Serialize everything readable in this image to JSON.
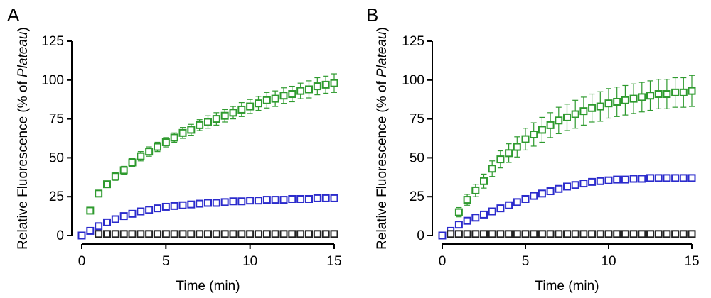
{
  "chart_data": [
    {
      "type": "scatter",
      "panel_label": "A",
      "xlabel": "Time (min)",
      "ylabel": {
        "pre": "Relative Fluorescence (% of ",
        "italic": "Plateau",
        "post": ")"
      },
      "xlim": [
        0,
        15
      ],
      "ylim": [
        0,
        125
      ],
      "xticks": [
        "0",
        "5",
        "10",
        "15"
      ],
      "yticks": [
        "0",
        "25",
        "50",
        "75",
        "100",
        "125"
      ],
      "grid": false,
      "series": [
        {
          "color": "#2e9a2e",
          "x": [
            0.5,
            1,
            1.5,
            2,
            2.5,
            3,
            3.5,
            4,
            4.5,
            5,
            5.5,
            6,
            6.5,
            7,
            7.5,
            8,
            8.5,
            9,
            9.5,
            10,
            10.5,
            11,
            11.5,
            12,
            12.5,
            13,
            13.5,
            14,
            14.5,
            15
          ],
          "y": [
            16,
            27,
            33,
            38,
            42,
            47,
            51,
            54,
            57,
            60,
            63,
            66,
            68,
            71,
            73,
            75,
            77,
            79,
            81,
            83,
            85,
            87,
            88,
            90,
            91,
            93,
            94,
            96,
            97,
            98
          ],
          "err": [
            1,
            2,
            2,
            2.5,
            2.5,
            2.5,
            3,
            3,
            3,
            3,
            3,
            3.5,
            3.5,
            3.5,
            4,
            4,
            4,
            4,
            4.5,
            4.5,
            4.5,
            5,
            5,
            5,
            5,
            5,
            5.5,
            5.5,
            5.5,
            6
          ]
        },
        {
          "color": "#2b2bcc",
          "x": [
            0,
            0.5,
            1,
            1.5,
            2,
            2.5,
            3,
            3.5,
            4,
            4.5,
            5,
            5.5,
            6,
            6.5,
            7,
            7.5,
            8,
            8.5,
            9,
            9.5,
            10,
            10.5,
            11,
            11.5,
            12,
            12.5,
            13,
            13.5,
            14,
            14.5,
            15
          ],
          "y": [
            0,
            3,
            6,
            8.5,
            10.5,
            12.5,
            14,
            15.5,
            16.5,
            17.5,
            18.5,
            19,
            19.5,
            20,
            20.5,
            21,
            21,
            21.5,
            22,
            22,
            22.5,
            22.5,
            23,
            23,
            23,
            23.5,
            23.5,
            23.5,
            24,
            24,
            24
          ],
          "err": [
            0,
            0.5,
            0.5,
            0.5,
            0.5,
            0.5,
            0.5,
            0.5,
            0.5,
            0.5,
            0.5,
            0.5,
            0.5,
            0.5,
            0.5,
            0.5,
            0.5,
            0.5,
            0.5,
            0.5,
            0.5,
            0.5,
            1,
            1,
            1,
            1,
            1,
            1,
            1,
            1,
            1
          ]
        },
        {
          "color": "#222222",
          "x": [
            1,
            1.5,
            2,
            2.5,
            3,
            3.5,
            4,
            4.5,
            5,
            5.5,
            6,
            6.5,
            7,
            7.5,
            8,
            8.5,
            9,
            9.5,
            10,
            10.5,
            11,
            11.5,
            12,
            12.5,
            13,
            13.5,
            14,
            14.5,
            15
          ],
          "y": [
            1,
            1,
            1,
            1,
            1,
            1,
            1,
            1,
            1,
            1,
            1,
            1,
            1,
            1,
            1,
            1,
            1,
            1,
            1,
            1,
            1,
            1,
            1,
            1,
            1,
            1,
            1,
            1,
            1
          ],
          "err": [
            0,
            0,
            0,
            0,
            0,
            0,
            0,
            0,
            0,
            0,
            0,
            0,
            0,
            0,
            0,
            0,
            0,
            0,
            0,
            0,
            0,
            0,
            0,
            0,
            0,
            0,
            0,
            0,
            0
          ]
        }
      ]
    },
    {
      "type": "scatter",
      "panel_label": "B",
      "xlabel": "Time (min)",
      "ylabel": {
        "pre": "Relative Fluorescence (% of ",
        "italic": "Plateau",
        "post": ")"
      },
      "xlim": [
        0,
        15
      ],
      "ylim": [
        0,
        125
      ],
      "xticks": [
        "0",
        "5",
        "10",
        "15"
      ],
      "yticks": [
        "0",
        "25",
        "50",
        "75",
        "100",
        "125"
      ],
      "grid": false,
      "series": [
        {
          "color": "#2e9a2e",
          "x": [
            1,
            1.5,
            2,
            2.5,
            3,
            3.5,
            4,
            4.5,
            5,
            5.5,
            6,
            6.5,
            7,
            7.5,
            8,
            8.5,
            9,
            9.5,
            10,
            10.5,
            11,
            11.5,
            12,
            12.5,
            13,
            13.5,
            14,
            14.5,
            15
          ],
          "y": [
            15,
            23,
            29,
            35,
            43,
            49,
            53,
            57,
            62,
            65,
            68,
            71,
            74,
            76,
            78,
            80,
            82,
            83,
            85,
            86,
            87,
            88,
            89,
            90,
            91,
            91,
            92,
            92,
            93
          ],
          "err": [
            3,
            3.5,
            4,
            4.5,
            5,
            5.5,
            6,
            6.5,
            7,
            7.5,
            8,
            8,
            8.5,
            8.5,
            9,
            9,
            9,
            9.5,
            9.5,
            9.5,
            9.5,
            9.5,
            9.5,
            9.5,
            9.5,
            9.5,
            9.5,
            9.5,
            10
          ]
        },
        {
          "color": "#2b2bcc",
          "x": [
            0,
            0.5,
            1,
            1.5,
            2,
            2.5,
            3,
            3.5,
            4,
            4.5,
            5,
            5.5,
            6,
            6.5,
            7,
            7.5,
            8,
            8.5,
            9,
            9.5,
            10,
            10.5,
            11,
            11.5,
            12,
            12.5,
            13,
            13.5,
            14,
            14.5,
            15
          ],
          "y": [
            0,
            3,
            7,
            9.5,
            11.5,
            13.5,
            15.5,
            17.5,
            19.5,
            21.5,
            23.5,
            25.5,
            27,
            28.5,
            30,
            31.5,
            32.5,
            33.5,
            34.5,
            35,
            35.5,
            36,
            36,
            36.5,
            36.5,
            37,
            37,
            37,
            37,
            37,
            37
          ],
          "err": [
            0,
            0.5,
            0.5,
            0.5,
            0.5,
            0.5,
            0.5,
            0.5,
            0.5,
            0.5,
            0.5,
            0.5,
            0.5,
            0.5,
            0.5,
            0.5,
            0.5,
            0.5,
            0.5,
            0.5,
            0.5,
            0.5,
            0.5,
            0.5,
            0.5,
            0.5,
            0.5,
            0.5,
            0.5,
            0.5,
            0.5
          ]
        },
        {
          "color": "#222222",
          "x": [
            0.5,
            1,
            1.5,
            2,
            2.5,
            3,
            3.5,
            4,
            4.5,
            5,
            5.5,
            6,
            6.5,
            7,
            7.5,
            8,
            8.5,
            9,
            9.5,
            10,
            10.5,
            11,
            11.5,
            12,
            12.5,
            13,
            13.5,
            14,
            14.5,
            15
          ],
          "y": [
            1,
            1,
            1,
            1,
            1,
            1,
            1,
            1,
            1,
            1,
            1,
            1,
            1,
            1,
            1,
            1,
            1,
            1,
            1,
            1,
            1,
            1,
            1,
            1,
            1,
            1,
            1,
            1,
            1,
            1
          ],
          "err": [
            0,
            0,
            0,
            0,
            0,
            0,
            0,
            0,
            0,
            0,
            0,
            0,
            0,
            0,
            0,
            0,
            0,
            0,
            0,
            0,
            0,
            0,
            0,
            0,
            0,
            0,
            0,
            0,
            0,
            0
          ]
        }
      ]
    }
  ]
}
